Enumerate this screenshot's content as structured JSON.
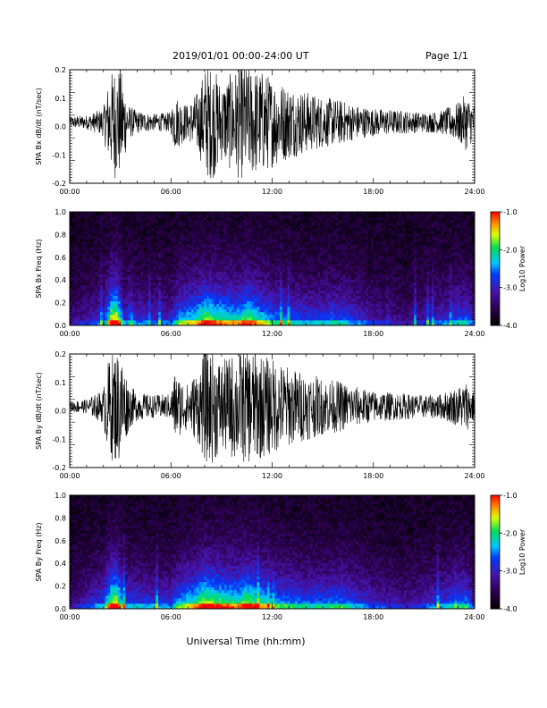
{
  "header": {
    "date_label": "2019/01/01  00:00-24:00 UT",
    "page_label": "Page 1/1"
  },
  "footer": {
    "xlabel": "Universal Time (hh:mm)"
  },
  "chart_data": [
    {
      "type": "line",
      "ylabel": "SPA Bx dB/dt (nT/sec)",
      "xlim": [
        0,
        24
      ],
      "ylim": [
        -0.2,
        0.2
      ],
      "xticks": [
        0,
        6,
        12,
        18,
        24
      ],
      "xticklabels": [
        "00:00",
        "06:00",
        "12:00",
        "18:00",
        "24:00"
      ],
      "yticks": [
        -0.2,
        -0.1,
        0.0,
        0.1,
        0.2
      ],
      "yticklabels": [
        "-0.2",
        "-0.1",
        "0.0",
        "0.1",
        "0.2"
      ],
      "series": [
        {
          "x": [
            0,
            1,
            2,
            2.2,
            2.6,
            3,
            3.5,
            4,
            5,
            6,
            6.2,
            7,
            7.7,
            8,
            8.5,
            9,
            9.5,
            10,
            10.5,
            11,
            11.5,
            12,
            13,
            14,
            15,
            16,
            17,
            18,
            19,
            20,
            21,
            22,
            23,
            23.5,
            24
          ],
          "amplitude": [
            0.02,
            0.025,
            0.05,
            0.12,
            0.2,
            0.2,
            0.06,
            0.04,
            0.03,
            0.035,
            0.1,
            0.06,
            0.12,
            0.2,
            0.2,
            0.14,
            0.17,
            0.2,
            0.2,
            0.19,
            0.18,
            0.16,
            0.13,
            0.11,
            0.09,
            0.08,
            0.06,
            0.05,
            0.045,
            0.04,
            0.035,
            0.04,
            0.07,
            0.1,
            0.06
          ]
        }
      ]
    },
    {
      "type": "heatmap",
      "ylabel": "SPA Bx Freq (Hz)",
      "xlim": [
        0,
        24
      ],
      "ylim": [
        0,
        1.0
      ],
      "xticks": [
        0,
        6,
        12,
        18,
        24
      ],
      "xticklabels": [
        "00:00",
        "06:00",
        "12:00",
        "18:00",
        "24:00"
      ],
      "yticks": [
        0.0,
        0.2,
        0.4,
        0.6,
        0.8,
        1.0
      ],
      "yticklabels": [
        "0.0",
        "0.2",
        "0.4",
        "0.6",
        "0.8",
        "1.0"
      ],
      "colorbar": {
        "label": "Log10 Power",
        "range": [
          -4.0,
          -1.0
        ],
        "ticks": [
          -1.0,
          -2.0,
          -3.0,
          -4.0
        ],
        "ticklabels": [
          "-1.0",
          "-2.0",
          "-3.0",
          "-4.0"
        ]
      },
      "activity": {
        "x": [
          0,
          2,
          2.5,
          2.8,
          3.2,
          6,
          6.5,
          7.5,
          8,
          8.5,
          10,
          10.5,
          11,
          12,
          14,
          15,
          16,
          18,
          20,
          23.5,
          24
        ],
        "level": [
          0.2,
          0.4,
          0.9,
          1.0,
          0.4,
          0.35,
          0.6,
          0.7,
          0.9,
          0.8,
          0.7,
          0.85,
          0.75,
          0.55,
          0.45,
          0.45,
          0.5,
          0.3,
          0.2,
          0.5,
          0.3
        ]
      }
    },
    {
      "type": "line",
      "ylabel": "SPA By dB/dt (nT/sec)",
      "xlim": [
        0,
        24
      ],
      "ylim": [
        -0.2,
        0.2
      ],
      "xticks": [
        0,
        6,
        12,
        18,
        24
      ],
      "xticklabels": [
        "00:00",
        "06:00",
        "12:00",
        "18:00",
        "24:00"
      ],
      "yticks": [
        -0.2,
        -0.1,
        0.0,
        0.1,
        0.2
      ],
      "yticklabels": [
        "-0.2",
        "-0.1",
        "0.0",
        "0.1",
        "0.2"
      ],
      "series": [
        {
          "x": [
            0,
            1,
            2,
            2.2,
            2.6,
            3,
            3.5,
            4,
            5,
            6,
            6.2,
            7,
            7.7,
            8,
            8.5,
            9,
            9.5,
            10,
            10.5,
            11,
            11.5,
            12,
            13,
            14,
            15,
            16,
            17,
            18,
            19,
            20,
            21,
            22,
            23,
            23.5,
            24
          ],
          "amplitude": [
            0.02,
            0.025,
            0.06,
            0.15,
            0.2,
            0.2,
            0.08,
            0.05,
            0.04,
            0.045,
            0.12,
            0.08,
            0.14,
            0.2,
            0.2,
            0.16,
            0.18,
            0.2,
            0.2,
            0.2,
            0.18,
            0.17,
            0.14,
            0.12,
            0.1,
            0.09,
            0.07,
            0.055,
            0.05,
            0.045,
            0.04,
            0.045,
            0.07,
            0.09,
            0.05
          ]
        }
      ]
    },
    {
      "type": "heatmap",
      "ylabel": "SPA By Freq (Hz)",
      "xlim": [
        0,
        24
      ],
      "ylim": [
        0,
        1.0
      ],
      "xticks": [
        0,
        6,
        12,
        18,
        24
      ],
      "xticklabels": [
        "00:00",
        "06:00",
        "12:00",
        "18:00",
        "24:00"
      ],
      "yticks": [
        0.0,
        0.2,
        0.4,
        0.6,
        0.8,
        1.0
      ],
      "yticklabels": [
        "0.0",
        "0.2",
        "0.4",
        "0.6",
        "0.8",
        "1.0"
      ],
      "colorbar": {
        "label": "Log10 Power",
        "range": [
          -4.0,
          -1.0
        ],
        "ticks": [
          -1.0,
          -2.0,
          -3.0,
          -4.0
        ],
        "ticklabels": [
          "-1.0",
          "-2.0",
          "-3.0",
          "-4.0"
        ]
      },
      "activity": {
        "x": [
          0,
          2,
          2.5,
          2.8,
          3.2,
          6,
          6.5,
          7.5,
          8,
          8.5,
          10,
          10.5,
          11,
          12,
          14,
          15,
          16,
          18,
          20,
          23.5,
          24
        ],
        "level": [
          0.2,
          0.45,
          0.9,
          1.0,
          0.45,
          0.4,
          0.6,
          0.75,
          0.95,
          0.85,
          0.75,
          0.9,
          0.8,
          0.6,
          0.5,
          0.5,
          0.55,
          0.35,
          0.25,
          0.55,
          0.3
        ]
      }
    }
  ]
}
